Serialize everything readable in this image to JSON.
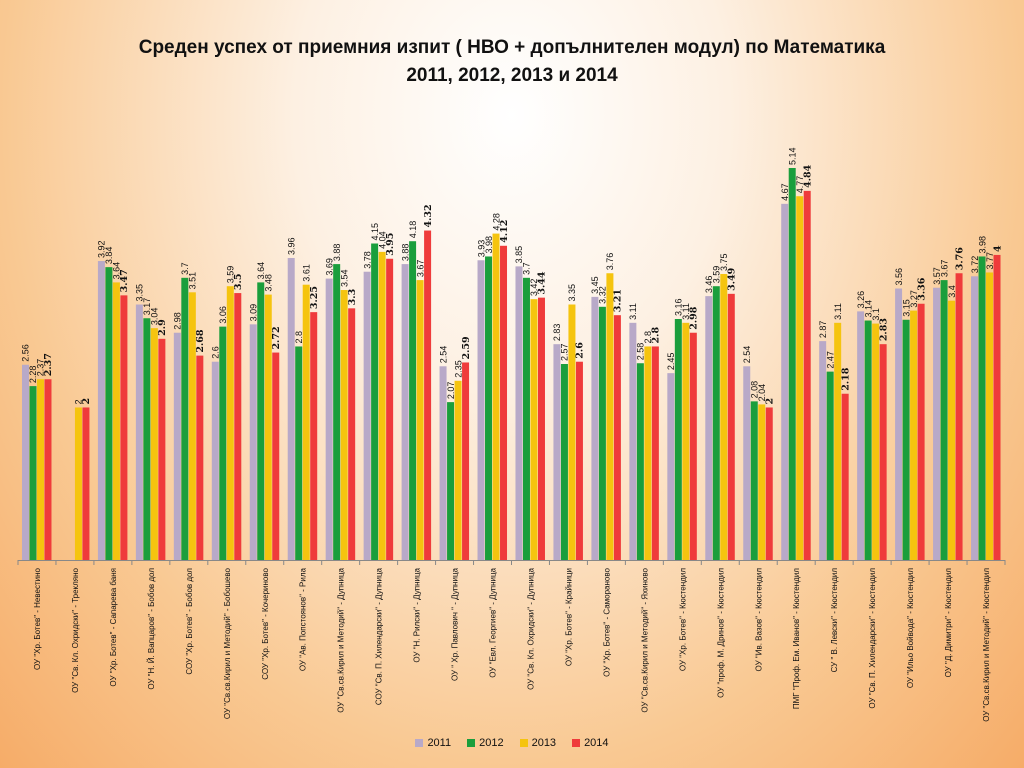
{
  "chart_data": {
    "type": "bar",
    "title_line1": "Среден успех  от приемния изпит ( НВО + допълнителен модул) по Математика",
    "title_line2": "2011, 2012, 2013 и 2014",
    "xlabel": "",
    "ylabel": "",
    "ylim": [
      0,
      5.14
    ],
    "grid": false,
    "legend_position": "bottom",
    "categories": [
      "ОУ \"Хр. Ботев\" - Невестино",
      "ОУ \"Св. Кл. Охридски\" - Трекляно",
      "ОУ \"Хр. Ботев\" - Сапарева баня",
      "ОУ \"Н. Й. Вапцаров\" - Бобов дол",
      "СОУ \"Хр. Ботев\" - Бобов дол",
      "ОУ \"Св.св.Кирил и Методий\" - Бобошево",
      "СОУ \"Хр. Ботев\" - Кочериново",
      "ОУ \"Ав. Попстоянов\" - Рила",
      "ОУ \"Св.св.Кирил и Методий\" - Дупница",
      "СОУ \"Св. П. Хилендарски\" - Дупница",
      "ОУ \"Н. Рилски\" - Дупница",
      "ОУ \" Хр. Павлович \" - Дупница",
      "ОУ \"Евл. Георгиев\" - Дупница",
      "ОУ \"Св. Кл. Охридски\" - Дупница",
      "ОУ \"Хр. Ботев\" - Крайници",
      "ОУ \"Хр. Ботев\" - Самораново",
      "ОУ \"Св.св.Кирил и Методий\" - Яхиново",
      "ОУ \"Хр. Ботев\" - Кюстендил",
      "ОУ \"проф. М. Дринов\" - Кюстендил",
      "ОУ \"Ив. Вазов\" - Кюстендил",
      "ПМГ \"Проф. Ем. Иванов\" - Кюстендил",
      "СУ \" В. Левски\" - Кюстендил",
      "ОУ \"Св. П. Хилендарски\" - Кюстендил",
      "ОУ \"Ильо Войвода\" - Кюстендил",
      "ОУ \"Д. Димитри\" - Кюстендил",
      "ОУ \"Св.св.Кирил и Методий\" - Кюстендил"
    ],
    "series": [
      {
        "name": "2011",
        "color": "#b8a9c8",
        "values": [
          2.56,
          null,
          3.92,
          3.35,
          2.98,
          2.6,
          3.09,
          3.96,
          3.69,
          3.78,
          3.88,
          2.54,
          3.93,
          3.85,
          2.83,
          3.45,
          3.11,
          2.45,
          3.46,
          2.54,
          4.67,
          2.87,
          3.26,
          3.56,
          3.57,
          3.72
        ]
      },
      {
        "name": "2012",
        "color": "#1a9e3c",
        "values": [
          2.28,
          null,
          3.84,
          3.17,
          3.7,
          3.06,
          3.64,
          2.8,
          3.88,
          4.15,
          4.18,
          2.07,
          3.98,
          3.7,
          2.57,
          3.32,
          2.58,
          3.16,
          3.59,
          2.08,
          5.14,
          2.47,
          3.14,
          3.15,
          3.67,
          3.98
        ]
      },
      {
        "name": "2013",
        "color": "#f5c40f",
        "values": [
          2.37,
          2.0,
          3.64,
          3.04,
          3.51,
          3.59,
          3.48,
          3.61,
          3.54,
          4.04,
          3.67,
          2.35,
          4.28,
          3.42,
          3.35,
          3.76,
          2.8,
          3.11,
          3.75,
          2.04,
          4.77,
          3.11,
          3.1,
          3.27,
          3.4,
          3.77
        ]
      },
      {
        "name": "2014",
        "color": "#ef3b3b",
        "values": [
          2.37,
          2.0,
          3.47,
          2.9,
          2.68,
          3.5,
          2.72,
          3.25,
          3.3,
          3.95,
          4.32,
          2.59,
          4.12,
          3.44,
          2.6,
          3.21,
          2.8,
          2.98,
          3.49,
          2.0,
          4.84,
          2.18,
          2.83,
          3.36,
          3.76,
          4.0
        ]
      }
    ],
    "data_labels": [
      [
        "2.56",
        null,
        "3.92",
        "3.35",
        "2.98",
        "2.6",
        "3.09",
        "3.96",
        "3.69",
        "3.78",
        "3.88",
        "2.54",
        "3.93",
        "3.85",
        "2.83",
        "3.45",
        "3.11",
        "2.45",
        "3.46",
        "2.54",
        "4.67",
        "2.87",
        "3.26",
        "3.56",
        "3.57",
        "3.72"
      ],
      [
        "2.28",
        null,
        "3.84",
        "3.17",
        "3.7",
        "3.06",
        "3.64",
        "2.8",
        "3.88",
        "4.15",
        "4.18",
        "2.07",
        "3.98",
        "3.7",
        "2.57",
        "3.32",
        "2.58",
        "3.16",
        "3.59",
        "2.08",
        "5.14",
        "2.47",
        "3.14",
        "3.15",
        "3.67",
        "3.98"
      ],
      [
        "2.37",
        "2",
        "3.64",
        "3.04",
        "3.51",
        "3.59",
        "3.48",
        "3.61",
        "3.54",
        "4.04",
        "3.67",
        "2.35",
        "4.28",
        "3.42",
        "3.35",
        "3.76",
        "2.8",
        "3.11",
        "3.75",
        "2.04",
        "4.77",
        "3.11",
        "3.1",
        "3.27",
        "3.4",
        "3.77"
      ],
      [
        "2.37",
        "2",
        "3.47",
        "2.9",
        "2.68",
        "3.5",
        "2.72",
        "3.25",
        "3.3",
        "3.95",
        "4.32",
        "2.59",
        "4.12",
        "3.44",
        "2.6",
        "3.21",
        "2.8",
        "2.98",
        "3.49",
        "2",
        "4.84",
        "2.18",
        "2.83",
        "3.36",
        "3.76",
        "4"
      ]
    ]
  }
}
